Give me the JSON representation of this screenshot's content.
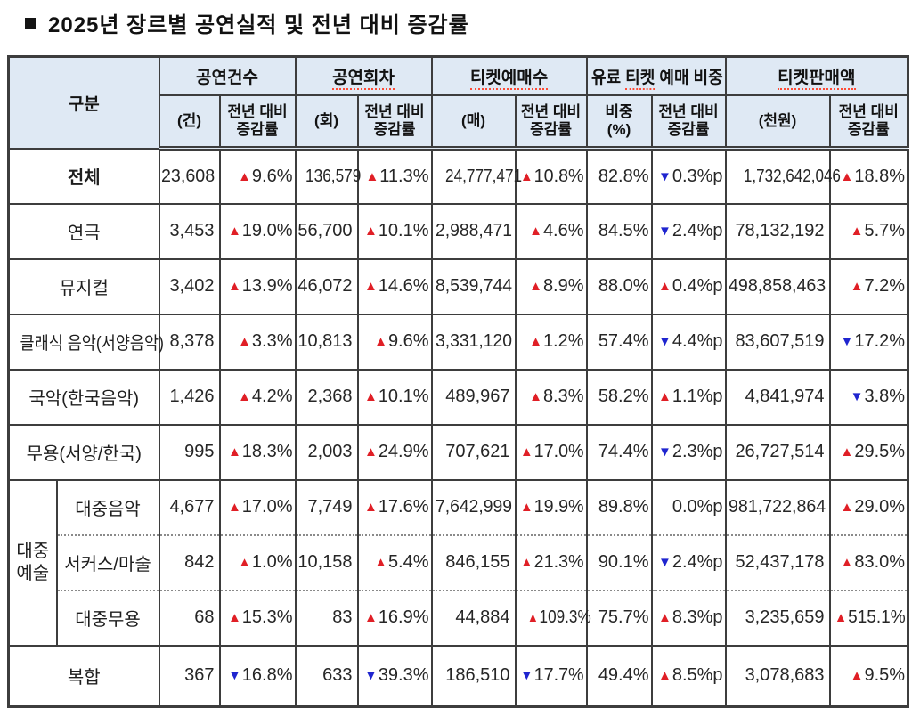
{
  "title": "2025년 장르별 공연실적 및 전년 대비 증감률",
  "colors": {
    "header_bg": "#dfe9f4",
    "border": "#3d3d3d",
    "up_triangle": "#e01f26",
    "down_triangle": "#1f25cf",
    "spellcheck_underline": "#ff4b35"
  },
  "header": {
    "category": "구분",
    "groups": [
      {
        "pre": "공연건수",
        "u": "",
        "post": ""
      },
      {
        "pre": "",
        "u": "공연회차",
        "post": ""
      },
      {
        "pre": "",
        "u": "티켓예매수",
        "post": ""
      },
      {
        "pre": "유료 ",
        "u": "티켓",
        "post": " 예매 비중"
      },
      {
        "pre": "",
        "u": "티켓판매액",
        "post": ""
      }
    ],
    "sub": [
      "(건)",
      "전년 대비\n증감률",
      "(회)",
      "전년 대비\n증감률",
      "(매)",
      "전년 대비\n증감률",
      "비중\n(%)",
      "전년 대비\n증감률",
      "(천원)",
      "전년 대비\n증감률"
    ]
  },
  "table": {
    "rows": [
      {
        "label": "전체",
        "bold": true,
        "cells": [
          {
            "v": "23,608"
          },
          {
            "dir": "up",
            "v": "9.6%"
          },
          {
            "v": "136,579"
          },
          {
            "dir": "up",
            "v": "11.3%"
          },
          {
            "v": "24,777,471"
          },
          {
            "dir": "up",
            "v": "10.8%"
          },
          {
            "v": "82.8%"
          },
          {
            "dir": "down",
            "v": "0.3%p"
          },
          {
            "v": "1,732,642,046"
          },
          {
            "dir": "up",
            "v": "18.8%"
          }
        ]
      },
      {
        "label": "연극",
        "cells": [
          {
            "v": "3,453"
          },
          {
            "dir": "up",
            "v": "19.0%"
          },
          {
            "v": "56,700"
          },
          {
            "dir": "up",
            "v": "10.1%"
          },
          {
            "v": "2,988,471"
          },
          {
            "dir": "up",
            "v": "4.6%"
          },
          {
            "v": "84.5%"
          },
          {
            "dir": "down",
            "v": "2.4%p"
          },
          {
            "v": "78,132,192"
          },
          {
            "dir": "up",
            "v": "5.7%"
          }
        ]
      },
      {
        "label": "뮤지컬",
        "cells": [
          {
            "v": "3,402"
          },
          {
            "dir": "up",
            "v": "13.9%"
          },
          {
            "v": "46,072"
          },
          {
            "dir": "up",
            "v": "14.6%"
          },
          {
            "v": "8,539,744"
          },
          {
            "dir": "up",
            "v": "8.9%"
          },
          {
            "v": "88.0%"
          },
          {
            "dir": "up",
            "v": "0.4%p"
          },
          {
            "v": "498,858,463"
          },
          {
            "dir": "up",
            "v": "7.2%"
          }
        ]
      },
      {
        "label": "클래식 음악(서양음악)",
        "cells": [
          {
            "v": "8,378"
          },
          {
            "dir": "up",
            "v": "3.3%"
          },
          {
            "v": "10,813"
          },
          {
            "dir": "up",
            "v": "9.6%"
          },
          {
            "v": "3,331,120"
          },
          {
            "dir": "up",
            "v": "1.2%"
          },
          {
            "v": "57.4%"
          },
          {
            "dir": "down",
            "v": "4.4%p"
          },
          {
            "v": "83,607,519"
          },
          {
            "dir": "down",
            "v": "17.2%"
          }
        ]
      },
      {
        "label": "국악(한국음악)",
        "cells": [
          {
            "v": "1,426"
          },
          {
            "dir": "up",
            "v": "4.2%"
          },
          {
            "v": "2,368"
          },
          {
            "dir": "up",
            "v": "10.1%"
          },
          {
            "v": "489,967"
          },
          {
            "dir": "up",
            "v": "8.3%"
          },
          {
            "v": "58.2%"
          },
          {
            "dir": "up",
            "v": "1.1%p"
          },
          {
            "v": "4,841,974"
          },
          {
            "dir": "down",
            "v": "3.8%"
          }
        ]
      },
      {
        "label": "무용(서양/한국)",
        "cells": [
          {
            "v": "995"
          },
          {
            "dir": "up",
            "v": "18.3%"
          },
          {
            "v": "2,003"
          },
          {
            "dir": "up",
            "v": "24.9%"
          },
          {
            "v": "707,621"
          },
          {
            "dir": "up",
            "v": "17.0%"
          },
          {
            "v": "74.4%"
          },
          {
            "dir": "down",
            "v": "2.3%p"
          },
          {
            "v": "26,727,514"
          },
          {
            "dir": "up",
            "v": "29.5%"
          }
        ]
      },
      {
        "label": "대중음악",
        "group": {
          "label": "대중\n예술",
          "span": 3
        },
        "cells": [
          {
            "v": "4,677"
          },
          {
            "dir": "up",
            "v": "17.0%"
          },
          {
            "v": "7,749"
          },
          {
            "dir": "up",
            "v": "17.6%"
          },
          {
            "v": "7,642,999"
          },
          {
            "dir": "up",
            "v": "19.9%"
          },
          {
            "v": "89.8%"
          },
          {
            "v": "0.0%p"
          },
          {
            "v": "981,722,864"
          },
          {
            "dir": "up",
            "v": "29.0%"
          }
        ]
      },
      {
        "label": "서커스/마술",
        "in_group": true,
        "dotted": true,
        "cells": [
          {
            "v": "842"
          },
          {
            "dir": "up",
            "v": "1.0%"
          },
          {
            "v": "10,158"
          },
          {
            "dir": "up",
            "v": "5.4%"
          },
          {
            "v": "846,155"
          },
          {
            "dir": "up",
            "v": "21.3%"
          },
          {
            "v": "90.1%"
          },
          {
            "dir": "down",
            "v": "2.4%p"
          },
          {
            "v": "52,437,178"
          },
          {
            "dir": "up",
            "v": "83.0%"
          }
        ]
      },
      {
        "label": "대중무용",
        "in_group": true,
        "dotted": true,
        "cells": [
          {
            "v": "68"
          },
          {
            "dir": "up",
            "v": "15.3%"
          },
          {
            "v": "83"
          },
          {
            "dir": "up",
            "v": "16.9%"
          },
          {
            "v": "44,884"
          },
          {
            "dir": "up",
            "v": "109.3%"
          },
          {
            "v": "75.7%"
          },
          {
            "dir": "up",
            "v": "8.3%p"
          },
          {
            "v": "3,235,659"
          },
          {
            "dir": "up",
            "v": "515.1%"
          }
        ]
      },
      {
        "label": "복합",
        "cells": [
          {
            "v": "367"
          },
          {
            "dir": "down",
            "v": "16.8%"
          },
          {
            "v": "633"
          },
          {
            "dir": "down",
            "v": "39.3%"
          },
          {
            "v": "186,510"
          },
          {
            "dir": "down",
            "v": "17.7%"
          },
          {
            "v": "49.4%"
          },
          {
            "dir": "up",
            "v": "8.5%p"
          },
          {
            "v": "3,078,683"
          },
          {
            "dir": "up",
            "v": "9.5%"
          }
        ]
      }
    ]
  }
}
